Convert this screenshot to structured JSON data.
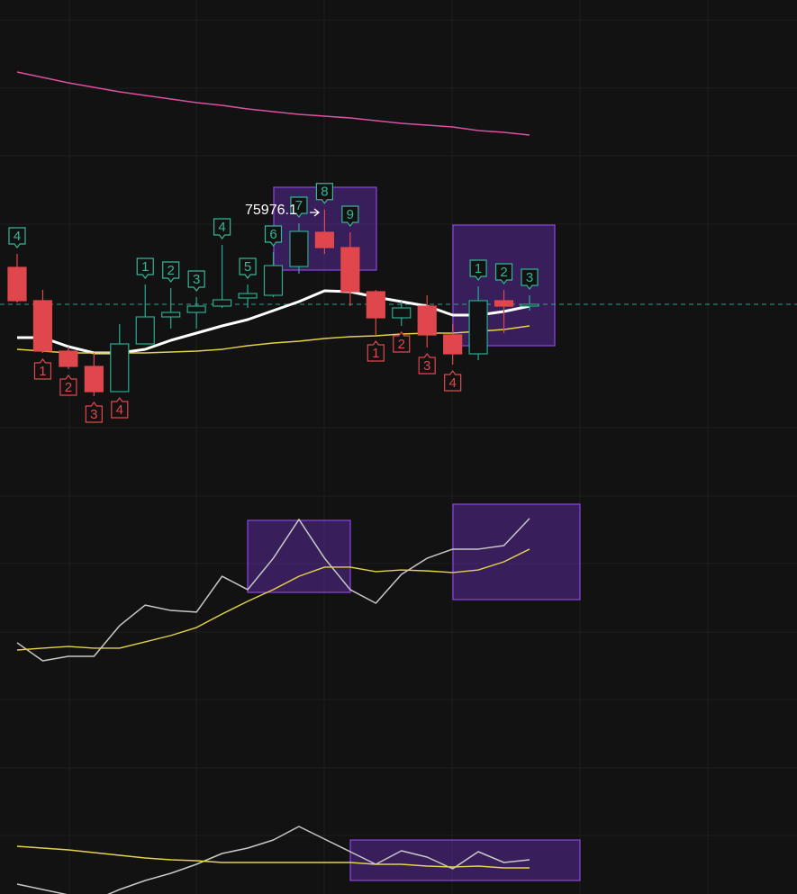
{
  "chart_data": [
    {
      "type": "candlestick",
      "high_label": "75976.1",
      "ylim": [
        74740,
        77140
      ],
      "up_color": "#2ba98f",
      "down_color": "#e0474c",
      "open": [
        75655,
        75470,
        75190,
        75105,
        74965,
        75230,
        75380,
        75405,
        75440,
        75485,
        75500,
        75660,
        75850,
        75765,
        75520,
        75375,
        75440,
        75280,
        75175,
        75470,
        75440
      ],
      "high": [
        75730,
        75530,
        75215,
        75180,
        75340,
        75560,
        75540,
        75490,
        75780,
        75560,
        75740,
        75900,
        75976.1,
        75850,
        75530,
        75465,
        75500,
        75340,
        75550,
        75530,
        75500
      ],
      "low": [
        75460,
        75180,
        75090,
        74940,
        74965,
        75230,
        75315,
        75315,
        75430,
        75430,
        75490,
        75620,
        75730,
        75440,
        75280,
        75330,
        75210,
        75115,
        75140,
        75290,
        75415
      ],
      "close": [
        75470,
        75190,
        75105,
        74965,
        75230,
        75380,
        75405,
        75440,
        75475,
        75510,
        75665,
        75855,
        75765,
        75520,
        75375,
        75430,
        75280,
        75175,
        75470,
        75440,
        75450
      ],
      "count_up": [
        "4",
        null,
        null,
        null,
        null,
        "1",
        "2",
        "3",
        "4",
        "5",
        "6",
        "7",
        "8",
        "9",
        null,
        null,
        null,
        null,
        "1",
        "2",
        "3"
      ],
      "count_down": [
        null,
        "1",
        "2",
        "3",
        "4",
        null,
        null,
        null,
        null,
        null,
        null,
        null,
        null,
        null,
        "1",
        "2",
        "3",
        "4",
        null,
        null,
        null
      ],
      "count_up_color": "#34b596",
      "count_down_color": "#e0474c",
      "last_price": 75450,
      "last_price_color": "#2fa38a",
      "series": [
        {
          "color": "#d9519f",
          "values": [
            76740,
            76710,
            76680,
            76655,
            76630,
            76610,
            76590,
            76570,
            76555,
            76535,
            76520,
            76505,
            76495,
            76485,
            76470,
            76455,
            76445,
            76435,
            76415,
            76405,
            76390
          ]
        },
        {
          "color": "#ffffff",
          "values": [
            75265,
            75265,
            75215,
            75180,
            75180,
            75200,
            75250,
            75290,
            75330,
            75365,
            75415,
            75465,
            75525,
            75520,
            75490,
            75465,
            75440,
            75390,
            75390,
            75410,
            75440
          ]
        },
        {
          "color": "#e6d34a",
          "values": [
            75200,
            75190,
            75180,
            75180,
            75180,
            75180,
            75185,
            75190,
            75200,
            75220,
            75235,
            75245,
            75260,
            75270,
            75275,
            75285,
            75290,
            75290,
            75300,
            75310,
            75330
          ]
        }
      ]
    },
    {
      "type": "line",
      "ylim": [
        0,
        100
      ],
      "series": [
        {
          "color": "#c8c8c8",
          "values": [
            33.1,
            25.4,
            27.3,
            27.3,
            40.4,
            49.2,
            46.9,
            46.2,
            61.5,
            55.8,
            69.2,
            85.8,
            69.2,
            55.8,
            50,
            62.3,
            69.2,
            73.1,
            73.1,
            74.6,
            86.2
          ]
        },
        {
          "color": "#e6d34a",
          "values": [
            30,
            30.8,
            31.5,
            30.8,
            30.8,
            33.5,
            36.2,
            39.6,
            45.4,
            50.8,
            55.8,
            61.5,
            65.4,
            65.4,
            63.5,
            64.2,
            63.8,
            63.1,
            64.2,
            67.7,
            73.1
          ]
        }
      ]
    },
    {
      "type": "line",
      "ylim": [
        0,
        100
      ],
      "series": [
        {
          "color": "#c8c8c8",
          "values": [
            21,
            15,
            9,
            3,
            15,
            25,
            33,
            43,
            55,
            61,
            70,
            85,
            71,
            57,
            43,
            58,
            51,
            38,
            57,
            45,
            48
          ]
        },
        {
          "color": "#e6d34a",
          "values": [
            63,
            61,
            59,
            56,
            53,
            50,
            48,
            47,
            45,
            45,
            45,
            45,
            45,
            45,
            43,
            43,
            41,
            40,
            41,
            39,
            39
          ]
        }
      ]
    }
  ]
}
